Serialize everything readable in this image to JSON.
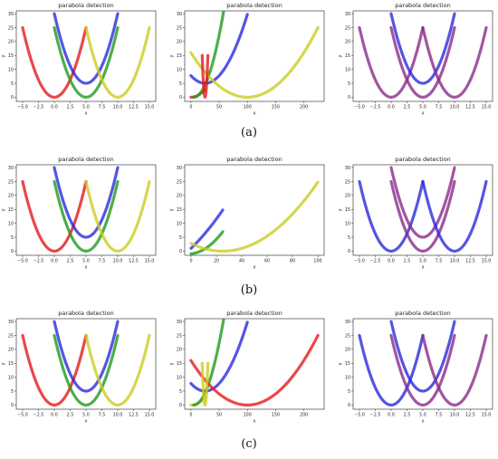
{
  "figure": {
    "captions": [
      "(a)",
      "(b)",
      "(c)"
    ]
  },
  "colors": {
    "red": "#e31a1c",
    "green": "#1f9a1f",
    "blue": "#2b2bdc",
    "yellow": "#cccc22",
    "purple": "#8a2a8a",
    "axis": "#222222"
  },
  "chart_data": [
    {
      "type": "scatter",
      "title": "parabola detection",
      "xlabel": "x",
      "ylabel": "y",
      "xlim": [
        -6,
        16
      ],
      "ylim": [
        -1.5,
        31
      ],
      "xticks": [
        -5,
        -2.5,
        0,
        2.5,
        5,
        7.5,
        10,
        12.5,
        15
      ],
      "xtick_labels": [
        "−5.0",
        "−2.5",
        "0.0",
        "2.5",
        "5.0",
        "7.5",
        "10.0",
        "12.5",
        "15.0"
      ],
      "yticks": [
        0,
        5,
        10,
        15,
        20,
        25,
        30
      ],
      "ytick_labels": [
        "0",
        "5",
        "10",
        "15",
        "20",
        "25",
        "30"
      ],
      "series": [
        {
          "color": "red",
          "vertex": [
            0,
            0
          ],
          "a": 1,
          "x_range": [
            -5,
            5
          ]
        },
        {
          "color": "blue",
          "vertex": [
            5,
            5
          ],
          "a": 1,
          "x_range": [
            0,
            10
          ]
        },
        {
          "color": "green",
          "vertex": [
            5,
            0
          ],
          "a": 1,
          "x_range": [
            0,
            10
          ]
        },
        {
          "color": "yellow",
          "vertex": [
            10,
            0
          ],
          "a": 1,
          "x_range": [
            5,
            15
          ]
        }
      ]
    },
    {
      "type": "scatter",
      "title": "parabola detection",
      "xlabel": "x",
      "ylabel": "y",
      "xlim": [
        -11,
        236
      ],
      "ylim": [
        -1.5,
        31
      ],
      "xticks": [
        0,
        50,
        100,
        150,
        200
      ],
      "xtick_labels": [
        "0",
        "50",
        "100",
        "150",
        "200"
      ],
      "yticks": [
        0,
        5,
        10,
        15,
        20,
        25,
        30
      ],
      "ytick_labels": [
        "0",
        "5",
        "10",
        "15",
        "20",
        "25",
        "30"
      ],
      "series": [
        {
          "color": "red",
          "vertex": [
            0,
            0
          ],
          "a": 0.0044,
          "x_range": [
            0,
            25
          ]
        },
        {
          "color": "green",
          "vertex": [
            5,
            0
          ],
          "a": 0.011,
          "x_range": [
            5,
            100
          ]
        },
        {
          "color": "blue",
          "vertex": [
            25,
            5
          ],
          "a": 0.0044,
          "x_range": [
            0,
            100
          ]
        },
        {
          "color": "yellow",
          "vertex": [
            100,
            0
          ],
          "a": 0.0016,
          "x_range": [
            0,
            225
          ]
        },
        {
          "color": "red",
          "vertex": [
            25,
            0
          ],
          "a": 0.6,
          "x_range": [
            20,
            30
          ]
        }
      ]
    },
    {
      "type": "scatter",
      "title": "parabola detection",
      "xlabel": "x",
      "ylabel": "y",
      "xlim": [
        -6,
        16
      ],
      "ylim": [
        -1.5,
        31
      ],
      "xticks": [
        -5,
        -2.5,
        0,
        2.5,
        5,
        7.5,
        10,
        12.5,
        15
      ],
      "xtick_labels": [
        "−5.0",
        "−2.5",
        "0.0",
        "2.5",
        "5.0",
        "7.5",
        "10.0",
        "12.5",
        "15.0"
      ],
      "yticks": [
        0,
        5,
        10,
        15,
        20,
        25,
        30
      ],
      "ytick_labels": [
        "0",
        "5",
        "10",
        "15",
        "20",
        "25",
        "30"
      ],
      "series": [
        {
          "color": "purple",
          "vertex": [
            0,
            0
          ],
          "a": 1,
          "x_range": [
            -5,
            5
          ]
        },
        {
          "color": "blue",
          "vertex": [
            5,
            5
          ],
          "a": 1,
          "x_range": [
            0,
            10
          ]
        },
        {
          "color": "purple",
          "vertex": [
            5,
            0
          ],
          "a": 1,
          "x_range": [
            0,
            10
          ]
        },
        {
          "color": "purple",
          "vertex": [
            10,
            0
          ],
          "a": 1,
          "x_range": [
            5,
            15
          ]
        }
      ]
    },
    {
      "type": "scatter",
      "title": "parabola detection",
      "xlabel": "x",
      "ylabel": "y",
      "xlim": [
        -6,
        16
      ],
      "ylim": [
        -1.5,
        31
      ],
      "xticks": [
        -5,
        -2.5,
        0,
        2.5,
        5,
        7.5,
        10,
        12.5,
        15
      ],
      "xtick_labels": [
        "−5.0",
        "−2.5",
        "0.0",
        "2.5",
        "5.0",
        "7.5",
        "10.0",
        "12.5",
        "15.0"
      ],
      "yticks": [
        0,
        5,
        10,
        15,
        20,
        25,
        30
      ],
      "ytick_labels": [
        "0",
        "5",
        "10",
        "15",
        "20",
        "25",
        "30"
      ],
      "series": [
        {
          "color": "red",
          "vertex": [
            0,
            0
          ],
          "a": 1,
          "x_range": [
            -5,
            5
          ]
        },
        {
          "color": "blue",
          "vertex": [
            5,
            5
          ],
          "a": 1,
          "x_range": [
            0,
            10
          ]
        },
        {
          "color": "green",
          "vertex": [
            5,
            0
          ],
          "a": 1,
          "x_range": [
            0,
            10
          ]
        },
        {
          "color": "yellow",
          "vertex": [
            10,
            0
          ],
          "a": 1,
          "x_range": [
            5,
            15
          ]
        }
      ]
    },
    {
      "type": "scatter",
      "title": "parabola detection",
      "xlabel": "x",
      "ylabel": "y",
      "xlim": [
        -5,
        105
      ],
      "ylim": [
        -1.5,
        31
      ],
      "xticks": [
        0,
        20,
        40,
        60,
        80,
        100
      ],
      "xtick_labels": [
        "0",
        "20",
        "40",
        "60",
        "80",
        "100"
      ],
      "yticks": [
        0,
        5,
        10,
        15,
        20,
        25,
        30
      ],
      "ytick_labels": [
        "0",
        "5",
        "10",
        "15",
        "20",
        "25",
        "30"
      ],
      "series": [
        {
          "color": "blue",
          "vertex": [
            -50,
            -10
          ],
          "a": 0.0044,
          "x_range": [
            0,
            25
          ]
        },
        {
          "color": "green",
          "vertex": [
            -2,
            -1
          ],
          "a": 0.0109,
          "x_range": [
            0,
            25
          ]
        },
        {
          "color": "yellow",
          "vertex": [
            25,
            0
          ],
          "a": 0.0044,
          "x_range": [
            0,
            100
          ]
        }
      ]
    },
    {
      "type": "scatter",
      "title": "parabola detection",
      "xlabel": "x",
      "ylabel": "y",
      "xlim": [
        -6,
        16
      ],
      "ylim": [
        -1.5,
        31
      ],
      "xticks": [
        -5,
        -2.5,
        0,
        2.5,
        5,
        7.5,
        10,
        12.5,
        15
      ],
      "xtick_labels": [
        "−5.0",
        "−2.5",
        "0.0",
        "2.5",
        "5.0",
        "7.5",
        "10.0",
        "12.5",
        "15.0"
      ],
      "yticks": [
        0,
        5,
        10,
        15,
        20,
        25,
        30
      ],
      "ytick_labels": [
        "0",
        "5",
        "10",
        "15",
        "20",
        "25",
        "30"
      ],
      "series": [
        {
          "color": "blue",
          "vertex": [
            0,
            0
          ],
          "a": 1,
          "x_range": [
            -5,
            5
          ]
        },
        {
          "color": "purple",
          "vertex": [
            5,
            5
          ],
          "a": 1,
          "x_range": [
            0,
            10
          ]
        },
        {
          "color": "purple",
          "vertex": [
            5,
            0
          ],
          "a": 1,
          "x_range": [
            0,
            10
          ]
        },
        {
          "color": "blue",
          "vertex": [
            10,
            0
          ],
          "a": 1,
          "x_range": [
            5,
            15
          ]
        }
      ]
    },
    {
      "type": "scatter",
      "title": "parabola detection",
      "xlabel": "x",
      "ylabel": "y",
      "xlim": [
        -6,
        16
      ],
      "ylim": [
        -1.5,
        31
      ],
      "xticks": [
        -5,
        -2.5,
        0,
        2.5,
        5,
        7.5,
        10,
        12.5,
        15
      ],
      "xtick_labels": [
        "−5.0",
        "−2.5",
        "0.0",
        "2.5",
        "5.0",
        "7.5",
        "10.0",
        "12.5",
        "15.0"
      ],
      "yticks": [
        0,
        5,
        10,
        15,
        20,
        25,
        30
      ],
      "ytick_labels": [
        "0",
        "5",
        "10",
        "15",
        "20",
        "25",
        "30"
      ],
      "series": [
        {
          "color": "red",
          "vertex": [
            0,
            0
          ],
          "a": 1,
          "x_range": [
            -5,
            5
          ]
        },
        {
          "color": "blue",
          "vertex": [
            5,
            5
          ],
          "a": 1,
          "x_range": [
            0,
            10
          ]
        },
        {
          "color": "green",
          "vertex": [
            5,
            0
          ],
          "a": 1,
          "x_range": [
            0,
            10
          ]
        },
        {
          "color": "yellow",
          "vertex": [
            10,
            0
          ],
          "a": 1,
          "x_range": [
            5,
            15
          ]
        }
      ]
    },
    {
      "type": "scatter",
      "title": "parabola detection",
      "xlabel": "x",
      "ylabel": "y",
      "xlim": [
        -11,
        236
      ],
      "ylim": [
        -1.5,
        31
      ],
      "xticks": [
        0,
        50,
        100,
        150,
        200
      ],
      "xtick_labels": [
        "0",
        "50",
        "100",
        "150",
        "200"
      ],
      "yticks": [
        0,
        5,
        10,
        15,
        20,
        25,
        30
      ],
      "ytick_labels": [
        "0",
        "5",
        "10",
        "15",
        "20",
        "25",
        "30"
      ],
      "series": [
        {
          "color": "yellow",
          "vertex": [
            0,
            0
          ],
          "a": 0.0044,
          "x_range": [
            0,
            25
          ]
        },
        {
          "color": "green",
          "vertex": [
            5,
            0
          ],
          "a": 0.011,
          "x_range": [
            5,
            100
          ]
        },
        {
          "color": "blue",
          "vertex": [
            25,
            5
          ],
          "a": 0.0044,
          "x_range": [
            0,
            100
          ]
        },
        {
          "color": "red",
          "vertex": [
            100,
            0
          ],
          "a": 0.0016,
          "x_range": [
            0,
            225
          ]
        },
        {
          "color": "yellow",
          "vertex": [
            25,
            0
          ],
          "a": 0.6,
          "x_range": [
            20,
            30
          ]
        }
      ]
    },
    {
      "type": "scatter",
      "title": "parabola detection",
      "xlabel": "x",
      "ylabel": "y",
      "xlim": [
        -6,
        16
      ],
      "ylim": [
        -1.5,
        31
      ],
      "xticks": [
        -5,
        -2.5,
        0,
        2.5,
        5,
        7.5,
        10,
        12.5,
        15
      ],
      "xtick_labels": [
        "−5.0",
        "−2.5",
        "0.0",
        "2.5",
        "5.0",
        "7.5",
        "10.0",
        "12.5",
        "15.0"
      ],
      "yticks": [
        0,
        5,
        10,
        15,
        20,
        25,
        30
      ],
      "ytick_labels": [
        "0",
        "5",
        "10",
        "15",
        "20",
        "25",
        "30"
      ],
      "series": [
        {
          "color": "blue",
          "vertex": [
            0,
            0
          ],
          "a": 1,
          "x_range": [
            -5,
            5
          ]
        },
        {
          "color": "blue",
          "vertex": [
            5,
            5
          ],
          "a": 1,
          "x_range": [
            0,
            10
          ]
        },
        {
          "color": "purple",
          "vertex": [
            5,
            0
          ],
          "a": 1,
          "x_range": [
            0,
            10
          ]
        },
        {
          "color": "purple",
          "vertex": [
            10,
            0
          ],
          "a": 1,
          "x_range": [
            5,
            15
          ]
        }
      ]
    }
  ]
}
